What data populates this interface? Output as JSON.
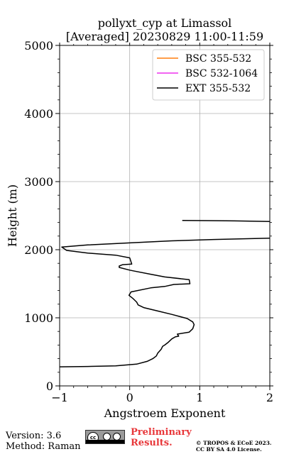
{
  "chart_data": {
    "type": "line",
    "title_line1": "pollyxt_cyp at Limassol",
    "title_line2": "[Averaged] 20230829 11:00-11:59",
    "xlabel": "Angstroem Exponent",
    "ylabel": "Height (m)",
    "xlim": [
      -1,
      2
    ],
    "ylim": [
      0,
      5000
    ],
    "xticks": [
      -1,
      0,
      1,
      2
    ],
    "xtick_labels": [
      "−1",
      "0",
      "1",
      "2"
    ],
    "yticks": [
      0,
      1000,
      2000,
      3000,
      4000,
      5000
    ],
    "ytick_labels": [
      "0",
      "1000",
      "2000",
      "3000",
      "4000",
      "5000"
    ],
    "grid": true,
    "legend_position": "top-right",
    "series": [
      {
        "name": "BSC 355-532",
        "color": "#ff7f0e",
        "x": [],
        "y": []
      },
      {
        "name": "BSC 532-1064",
        "color": "#ee30ee",
        "x": [],
        "y": []
      },
      {
        "name": "EXT 355-532",
        "color": "#000000",
        "segments": [
          {
            "x": [
              -1.0,
              -0.6,
              -0.2,
              0.1,
              0.25,
              0.33,
              0.38,
              0.4,
              0.45,
              0.47,
              0.5,
              0.55,
              0.6,
              0.65,
              0.7,
              0.68,
              0.85,
              0.9,
              0.92,
              0.9,
              0.82,
              0.6,
              0.4,
              0.2,
              0.12,
              0.1,
              0.05,
              -0.01,
              0.02,
              0.3,
              0.5,
              0.63,
              0.86,
              0.85,
              0.5,
              0.3,
              0.05,
              0.0,
              -0.15,
              -0.15,
              -0.1,
              0.03,
              0.0,
              -0.2,
              -0.6,
              -0.9,
              -0.97,
              -0.6,
              0.0,
              0.6,
              1.2,
              2.0
            ],
            "y": [
              280,
              285,
              295,
              320,
              360,
              400,
              440,
              480,
              540,
              580,
              600,
              640,
              690,
              720,
              730,
              760,
              790,
              840,
              900,
              940,
              990,
              1050,
              1100,
              1150,
              1190,
              1230,
              1280,
              1330,
              1380,
              1440,
              1460,
              1490,
              1500,
              1560,
              1600,
              1640,
              1690,
              1700,
              1740,
              1760,
              1780,
              1790,
              1880,
              1920,
              1950,
              1990,
              2040,
              2070,
              2100,
              2130,
              2150,
              2170
            ]
          },
          {
            "x": [
              0.75,
              1.1,
              1.5,
              2.0
            ],
            "y": [
              2430,
              2427,
              2423,
              2415
            ]
          }
        ]
      }
    ]
  },
  "footer": {
    "version": "Version: 3.6",
    "method": "Method: Raman",
    "preliminary_line1": "Preliminary",
    "preliminary_line2": "Results.",
    "copyright_line1": "© TROPOS & ECoE 2023.",
    "copyright_line2": "CC BY SA 4.0 License.",
    "license_badge_text": "cc"
  }
}
